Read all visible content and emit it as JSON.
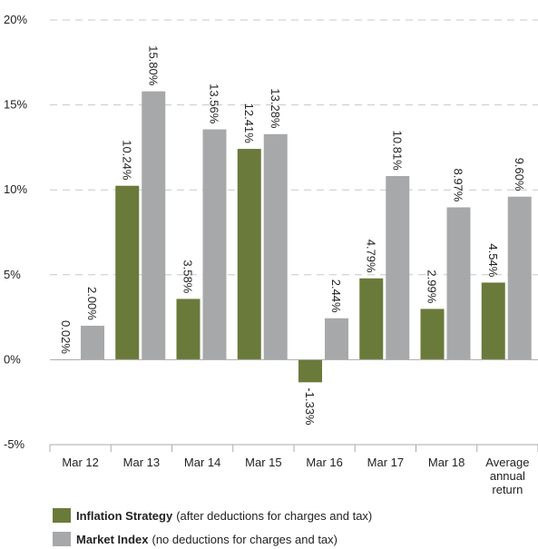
{
  "chart_data": {
    "type": "bar",
    "categories": [
      "Mar 12",
      "Mar 13",
      "Mar 14",
      "Mar 15",
      "Mar 16",
      "Mar 17",
      "Mar 18",
      "Average annual return"
    ],
    "category_lines": [
      [
        "Mar 12"
      ],
      [
        "Mar 13"
      ],
      [
        "Mar 14"
      ],
      [
        "Mar 15"
      ],
      [
        "Mar 16"
      ],
      [
        "Mar 17"
      ],
      [
        "Mar 18"
      ],
      [
        "Average",
        "annual",
        "return"
      ]
    ],
    "series": [
      {
        "name": "Inflation Strategy",
        "color": "#6a7a3a",
        "values": [
          0.02,
          10.24,
          3.58,
          12.41,
          -1.33,
          4.79,
          2.99,
          4.54
        ],
        "labels": [
          "0.02%",
          "10.24%",
          "3.58%",
          "12.41%",
          "-1.33%",
          "4.79%",
          "2.99%",
          "4.54%"
        ]
      },
      {
        "name": "Market Index",
        "color": "#a7a8aa",
        "values": [
          2.0,
          15.8,
          13.56,
          13.28,
          2.44,
          10.81,
          8.97,
          9.6
        ],
        "labels": [
          "2.00%",
          "15.80%",
          "13.56%",
          "13.28%",
          "2.44%",
          "10.81%",
          "8.97%",
          "9.60%"
        ]
      }
    ],
    "yticks": [
      20,
      15,
      10,
      5,
      0,
      -5
    ],
    "ytick_labels": [
      "20%",
      "15%",
      "10%",
      "5%",
      "0%",
      "-5%"
    ],
    "ylim": [
      -5,
      20
    ],
    "grid": true,
    "legend_position": "bottom-left"
  },
  "legend": [
    {
      "name": "Inflation Strategy",
      "note": "(after deductions for charges and tax)",
      "color": "#6a7a3a"
    },
    {
      "name": "Market Index",
      "note": "(no deductions for charges and tax)",
      "color": "#a7a8aa"
    }
  ]
}
